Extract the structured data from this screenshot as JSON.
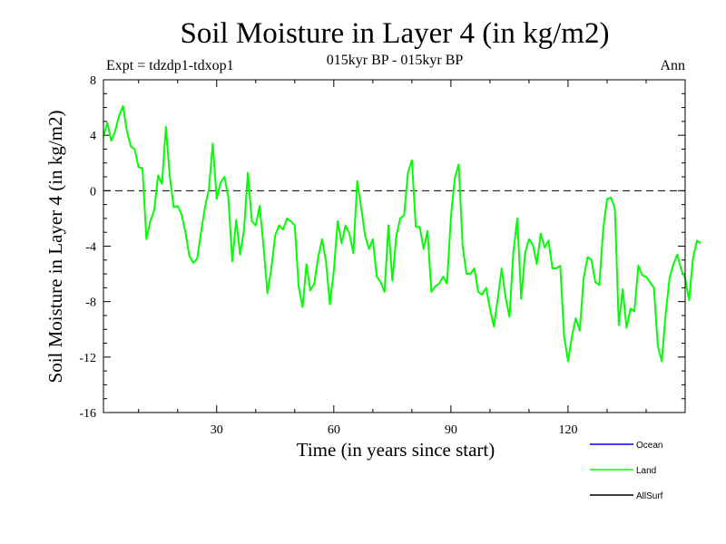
{
  "chart_data": {
    "type": "line",
    "title": "Soil Moisture in Layer 4 (in kg/m2)",
    "subtitle": "015kyr BP - 015kyr BP",
    "experiment_label": "Expt = tdzdp1-tdxop1",
    "season_label": "Ann",
    "xlabel": "Time (in years since start)",
    "ylabel": "Soil Moisture in Layer 4 (in kg/m2)",
    "xlim": [
      1,
      150
    ],
    "ylim": [
      -16,
      8
    ],
    "x_ticks": [
      30,
      60,
      90,
      120
    ],
    "y_ticks": [
      8,
      4,
      0,
      -4,
      -8,
      -12,
      -16
    ],
    "zero_line": "dashed",
    "legend_position": "bottom-right",
    "series": [
      {
        "name": "Ocean",
        "label": "Ocean",
        "color": "#0000ff",
        "values": []
      },
      {
        "name": "Land",
        "label": "Land",
        "color": "#00ff00",
        "x_start": 1,
        "x_step": 1,
        "values": [
          3.9,
          4.9,
          3.6,
          4.3,
          5.4,
          6.1,
          4.3,
          3.2,
          3.0,
          1.7,
          1.6,
          -3.5,
          -2.2,
          -1.4,
          1.1,
          0.5,
          4.6,
          1.0,
          -1.2,
          -1.1,
          -1.7,
          -3.0,
          -4.7,
          -5.2,
          -4.9,
          -3.0,
          -1.2,
          0.1,
          3.4,
          -0.6,
          0.6,
          1.0,
          -0.5,
          -5.1,
          -2.1,
          -4.6,
          -2.8,
          1.3,
          -2.2,
          -2.5,
          -1.1,
          -4.0,
          -7.4,
          -5.6,
          -3.2,
          -2.5,
          -2.8,
          -2.0,
          -2.2,
          -2.5,
          -6.9,
          -8.4,
          -5.3,
          -7.2,
          -6.7,
          -4.8,
          -3.5,
          -5.1,
          -8.2,
          -5.8,
          -2.2,
          -3.8,
          -2.5,
          -3.1,
          -4.5,
          0.7,
          -1.2,
          -3.2,
          -4.2,
          -3.5,
          -6.2,
          -6.6,
          -7.3,
          -2.5,
          -6.5,
          -3.3,
          -2.0,
          -1.8,
          1.3,
          2.2,
          -2.6,
          -2.6,
          -4.2,
          -2.9,
          -7.3,
          -6.9,
          -6.7,
          -6.2,
          -6.7,
          -1.9,
          0.9,
          1.9,
          -4.0,
          -6.0,
          -6.0,
          -5.6,
          -7.3,
          -7.5,
          -7.0,
          -8.5,
          -9.8,
          -7.8,
          -5.6,
          -7.7,
          -9.1,
          -4.4,
          -2.0,
          -7.8,
          -4.5,
          -3.5,
          -3.9,
          -5.3,
          -3.1,
          -4.1,
          -3.6,
          -5.6,
          -5.6,
          -5.4,
          -10.5,
          -12.3,
          -10.5,
          -9.2,
          -10.1,
          -6.3,
          -4.8,
          -5.0,
          -6.6,
          -6.8,
          -2.8,
          -0.6,
          -0.5,
          -1.3,
          -9.7,
          -7.1,
          -9.9,
          -8.5,
          -8.7,
          -5.4,
          -6.1,
          -6.2,
          -6.6,
          -7.0,
          -11.2,
          -12.3,
          -8.9,
          -6.3,
          -5.3,
          -4.6,
          -5.7,
          -6.3,
          -7.9,
          -4.9,
          -3.6,
          -3.8
        ]
      },
      {
        "name": "AllSurf",
        "label": "AllSurf",
        "color": "#000000",
        "values": []
      }
    ]
  }
}
